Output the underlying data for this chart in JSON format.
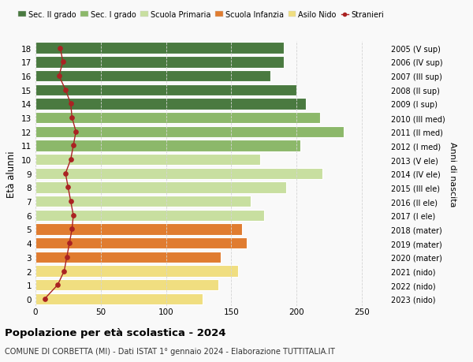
{
  "ages": [
    0,
    1,
    2,
    3,
    4,
    5,
    6,
    7,
    8,
    9,
    10,
    11,
    12,
    13,
    14,
    15,
    16,
    17,
    18
  ],
  "bar_values": [
    128,
    140,
    155,
    142,
    162,
    158,
    175,
    165,
    192,
    220,
    172,
    203,
    236,
    218,
    207,
    200,
    180,
    190,
    190
  ],
  "stranieri": [
    7,
    17,
    22,
    24,
    26,
    28,
    29,
    27,
    25,
    23,
    27,
    29,
    31,
    28,
    27,
    23,
    18,
    21,
    19
  ],
  "right_labels": [
    "2023 (nido)",
    "2022 (nido)",
    "2021 (nido)",
    "2020 (mater)",
    "2019 (mater)",
    "2018 (mater)",
    "2017 (I ele)",
    "2016 (II ele)",
    "2015 (III ele)",
    "2014 (IV ele)",
    "2013 (V ele)",
    "2012 (I med)",
    "2011 (II med)",
    "2010 (III med)",
    "2009 (I sup)",
    "2008 (II sup)",
    "2007 (III sup)",
    "2006 (IV sup)",
    "2005 (V sup)"
  ],
  "bar_colors": [
    "#f0de80",
    "#f0de80",
    "#f0de80",
    "#e07c30",
    "#e07c30",
    "#e07c30",
    "#c8dfa0",
    "#c8dfa0",
    "#c8dfa0",
    "#c8dfa0",
    "#c8dfa0",
    "#8cb86a",
    "#8cb86a",
    "#8cb86a",
    "#4a7a40",
    "#4a7a40",
    "#4a7a40",
    "#4a7a40",
    "#4a7a40"
  ],
  "legend_labels": [
    "Sec. II grado",
    "Sec. I grado",
    "Scuola Primaria",
    "Scuola Infanzia",
    "Asilo Nido",
    "Stranieri"
  ],
  "legend_colors": [
    "#4a7a40",
    "#8cb86a",
    "#c8dfa0",
    "#e07c30",
    "#f0de80",
    "#aa2222"
  ],
  "ylabel": "Età alunni",
  "right_ylabel": "Anni di nascita",
  "title": "Popolazione per età scolastica - 2024",
  "subtitle": "COMUNE DI CORBETTA (MI) - Dati ISTAT 1° gennaio 2024 - Elaborazione TUTTITALIA.IT",
  "xlim": [
    0,
    270
  ],
  "background_color": "#f9f9f9",
  "grid_color": "#d5d5d5",
  "stranieri_color": "#aa2222",
  "bar_height": 0.82
}
